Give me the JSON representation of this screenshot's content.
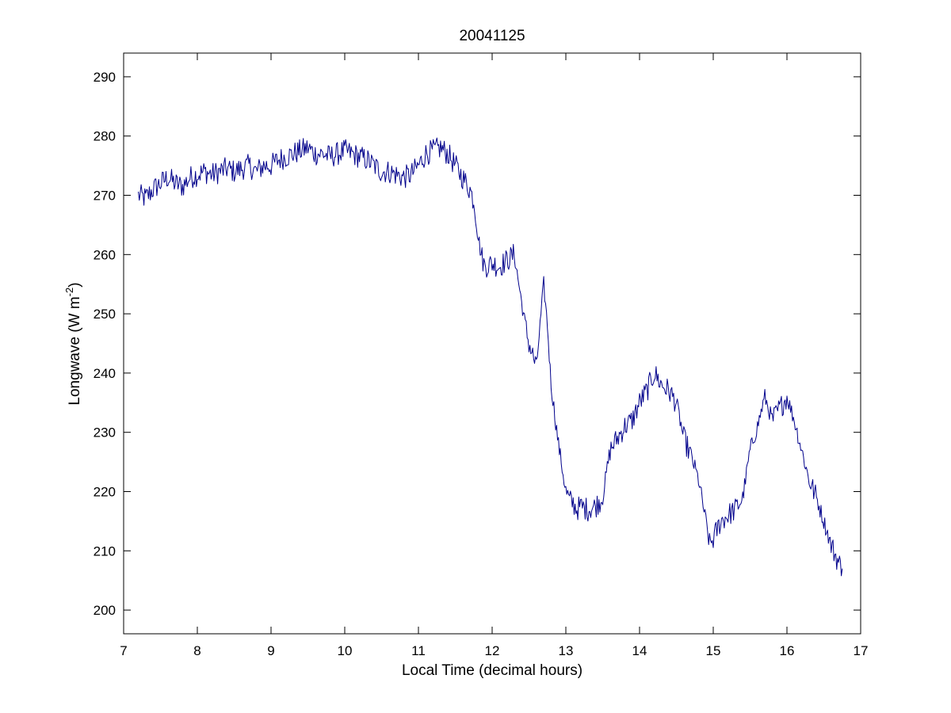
{
  "chart_data": {
    "type": "line",
    "title": "20041125",
    "xlabel": "Local Time (decimal hours)",
    "ylabel": "Longwave (W m-2)",
    "ylabel_main": "Longwave (W m",
    "ylabel_sup": "-2",
    "ylabel_close": ")",
    "xlim": [
      7,
      17
    ],
    "ylim": [
      196,
      294
    ],
    "xticks": [
      7,
      8,
      9,
      10,
      11,
      12,
      13,
      14,
      15,
      16,
      17
    ],
    "yticks": [
      200,
      210,
      220,
      230,
      240,
      250,
      260,
      270,
      280,
      290
    ],
    "grid": false,
    "line_color": "#00008B",
    "series": [
      {
        "x": [
          7.2,
          7.3,
          7.4,
          7.5,
          7.6,
          7.7,
          7.8,
          7.9,
          8.0,
          8.1,
          8.2,
          8.3,
          8.4,
          8.5,
          8.6,
          8.7,
          8.8,
          8.9,
          9.0,
          9.1,
          9.2,
          9.3,
          9.4,
          9.5,
          9.6,
          9.7,
          9.8,
          9.9,
          10.0,
          10.1,
          10.2,
          10.3,
          10.4,
          10.5,
          10.6,
          10.7,
          10.8,
          10.9,
          11.0,
          11.1,
          11.2,
          11.3,
          11.4,
          11.5,
          11.6,
          11.7,
          11.75,
          11.8,
          11.85,
          11.9,
          12.0,
          12.1,
          12.2,
          12.3,
          12.35,
          12.4,
          12.45,
          12.5,
          12.55,
          12.6,
          12.65,
          12.7,
          12.75,
          12.8,
          12.85,
          12.9,
          12.95,
          13.0,
          13.05,
          13.1,
          13.15,
          13.2,
          13.3,
          13.4,
          13.5,
          13.6,
          13.7,
          13.8,
          13.9,
          14.0,
          14.1,
          14.2,
          14.3,
          14.4,
          14.5,
          14.6,
          14.7,
          14.8,
          14.9,
          14.95,
          15.0,
          15.1,
          15.2,
          15.3,
          15.4,
          15.5,
          15.6,
          15.7,
          15.8,
          15.9,
          16.0,
          16.1,
          16.2,
          16.3,
          16.4,
          16.5,
          16.6,
          16.7,
          16.75
        ],
        "y": [
          270,
          269.5,
          271,
          272,
          273,
          272,
          271.5,
          273,
          273.5,
          274,
          273.5,
          274,
          274.5,
          274,
          274.5,
          275,
          274,
          275,
          275,
          276,
          276.5,
          277,
          277.5,
          278,
          277,
          277,
          276.5,
          277,
          277.5,
          277,
          276.5,
          276,
          275,
          274,
          274,
          273.5,
          273,
          273.5,
          275,
          277,
          277.5,
          278,
          277,
          275,
          273,
          271,
          269,
          264,
          260,
          258,
          258.5,
          258,
          259,
          260,
          256,
          252,
          248,
          245,
          243,
          241,
          248,
          255,
          248,
          238,
          233,
          228,
          224,
          220,
          218.5,
          218,
          217,
          217.5,
          217,
          217.5,
          219,
          227,
          229,
          231,
          232,
          235,
          237,
          240,
          238,
          237,
          235,
          229,
          226,
          222,
          215,
          211,
          212,
          215,
          216,
          217,
          219,
          227,
          231,
          236,
          232,
          234,
          236,
          232,
          227,
          222,
          219,
          215,
          211,
          208,
          207
        ]
      }
    ]
  }
}
